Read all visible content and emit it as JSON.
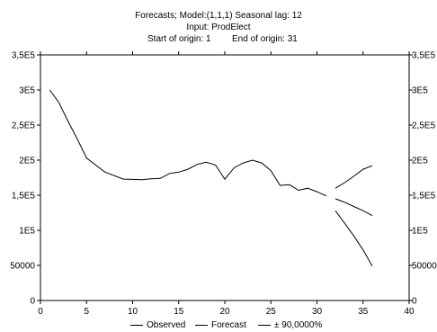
{
  "chart_data": {
    "type": "line",
    "title": "Forecasts; Model:(1,1,1) Seasonal lag: 12",
    "subtitle": "Input: ProdElect",
    "origin_start": "Start of origin: 1",
    "origin_end": "End of origin: 31",
    "xlim": [
      0,
      40
    ],
    "ylim": [
      0,
      350000
    ],
    "x_ticks": [
      "0",
      "5",
      "10",
      "15",
      "20",
      "25",
      "30",
      "35",
      "40"
    ],
    "y_ticks": [
      "0",
      "50000",
      "1E5",
      "1,5E5",
      "2E5",
      "2,5E5",
      "3E5",
      "3,5E5"
    ],
    "grid": false,
    "legend_position": "bottom",
    "series": [
      {
        "name": "Observed",
        "color": "#000000",
        "x": [
          1,
          2,
          3,
          4,
          5,
          6,
          7,
          8,
          9,
          10,
          11,
          12,
          13,
          14,
          15,
          16,
          17,
          18,
          19,
          20,
          21,
          22,
          23,
          24,
          25,
          26,
          27,
          28,
          29,
          30,
          31
        ],
        "values": [
          300000,
          282000,
          255000,
          230000,
          203000,
          193000,
          183000,
          178000,
          173000,
          172500,
          172000,
          173500,
          174000,
          181000,
          183000,
          187000,
          194000,
          197000,
          193000,
          173000,
          189000,
          196000,
          200000,
          196000,
          185000,
          164000,
          165000,
          157000,
          160000,
          155000,
          149000
        ]
      },
      {
        "name": "Forecast",
        "color": "#000000",
        "x": [
          32,
          33,
          34,
          35,
          36
        ],
        "values": [
          145000,
          140000,
          134000,
          128000,
          121000
        ]
      },
      {
        "name": "± 90,0000%",
        "color": "#000000",
        "x": [
          32,
          33,
          34,
          35,
          36
        ],
        "upper": [
          160000,
          168000,
          177000,
          187000,
          192000
        ],
        "lower": [
          128000,
          110000,
          92000,
          72000,
          49000
        ]
      }
    ]
  }
}
